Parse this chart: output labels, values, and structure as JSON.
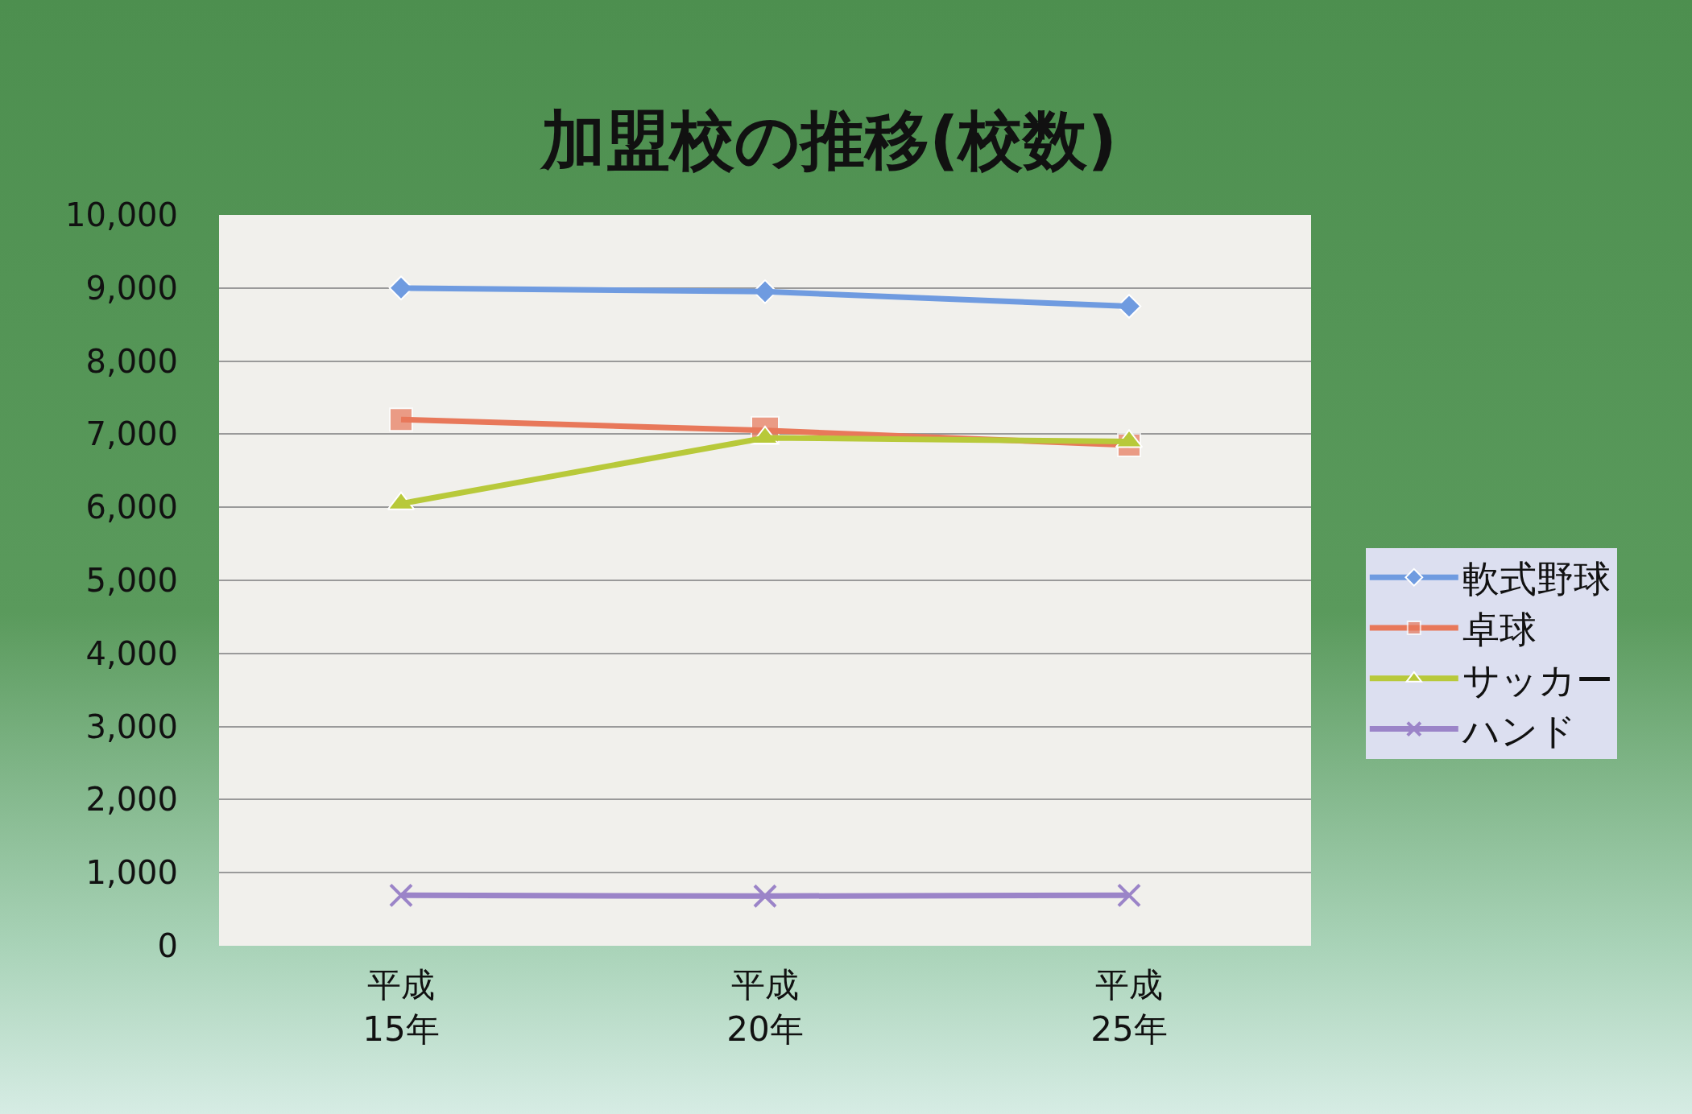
{
  "chart_data": {
    "type": "line",
    "title": "加盟校の推移(校数)",
    "categories": [
      "平成\n15年",
      "平成\n20年",
      "平成\n25年"
    ],
    "series": [
      {
        "name": "軟式野球",
        "color": "#6f9be0",
        "marker": "diamond",
        "values": [
          9000,
          8950,
          8750
        ]
      },
      {
        "name": "卓球",
        "color": "#e8785a",
        "marker": "square",
        "values": [
          7200,
          7050,
          6850
        ]
      },
      {
        "name": "サッカー",
        "color": "#b8c93a",
        "marker": "triangle",
        "values": [
          6050,
          6950,
          6900
        ]
      },
      {
        "name": "ハンド",
        "color": "#9b84c8",
        "marker": "cross",
        "values": [
          690,
          680,
          690
        ]
      }
    ],
    "ylim": [
      0,
      10000
    ],
    "yticks": [
      {
        "value": 0,
        "label": "0"
      },
      {
        "value": 1000,
        "label": "1,000"
      },
      {
        "value": 2000,
        "label": "2,000"
      },
      {
        "value": 3000,
        "label": "3,000"
      },
      {
        "value": 4000,
        "label": "4,000"
      },
      {
        "value": 5000,
        "label": "5,000"
      },
      {
        "value": 6000,
        "label": "6,000"
      },
      {
        "value": 7000,
        "label": "7,000"
      },
      {
        "value": 8000,
        "label": "8,000"
      },
      {
        "value": 9000,
        "label": "9,000"
      },
      {
        "value": 10000,
        "label": "10,000"
      }
    ],
    "grid": "y",
    "legend": "right",
    "line_style": "solid"
  }
}
